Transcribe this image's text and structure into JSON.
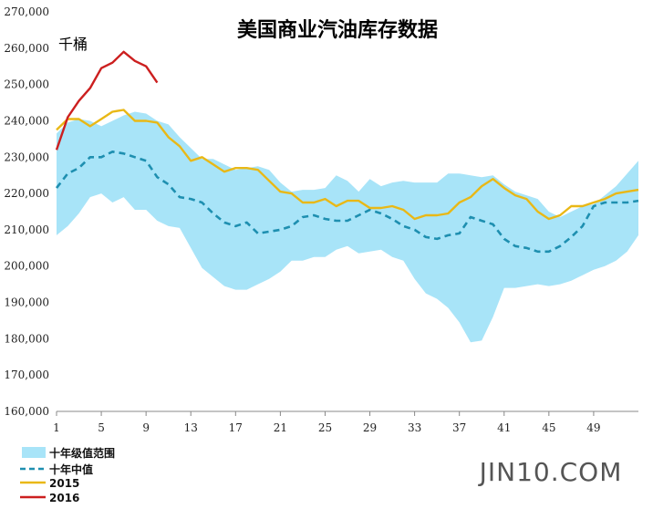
{
  "chart_data": {
    "type": "line",
    "title": "美国商业汽油库存数据",
    "unit_label": "千桶",
    "xlabel": "",
    "ylabel": "",
    "ylim": [
      160000,
      270000
    ],
    "yticks": [
      160000,
      170000,
      180000,
      190000,
      200000,
      210000,
      220000,
      230000,
      240000,
      250000,
      260000,
      270000
    ],
    "ytick_labels": [
      "160,000",
      "170,000",
      "180,000",
      "190,000",
      "200,000",
      "210,000",
      "220,000",
      "230,000",
      "240,000",
      "250,000",
      "260,000",
      "270,000"
    ],
    "xlim": [
      1,
      53
    ],
    "xticks": [
      1,
      5,
      9,
      13,
      17,
      21,
      25,
      29,
      33,
      37,
      41,
      45,
      49
    ],
    "xtick_labels": [
      "1",
      "5",
      "9",
      "13",
      "17",
      "21",
      "25",
      "29",
      "33",
      "37",
      "41",
      "45",
      "49"
    ],
    "grid": false,
    "legend_position": "bottom-left",
    "range_band": {
      "name": "十年级值范围",
      "color": "#a8e4f8",
      "x": [
        1,
        2,
        3,
        4,
        5,
        6,
        7,
        8,
        9,
        10,
        11,
        12,
        13,
        14,
        15,
        16,
        17,
        18,
        19,
        20,
        21,
        22,
        23,
        24,
        25,
        26,
        27,
        28,
        29,
        30,
        31,
        32,
        33,
        34,
        35,
        36,
        37,
        38,
        39,
        40,
        41,
        42,
        43,
        44,
        45,
        46,
        47,
        48,
        49,
        50,
        51,
        52,
        53
      ],
      "upper": [
        236500,
        239500,
        240500,
        240000,
        238500,
        240000,
        241500,
        242500,
        242000,
        240000,
        239000,
        235500,
        232500,
        229500,
        229500,
        228000,
        226500,
        227000,
        227500,
        226500,
        223000,
        220500,
        221000,
        221000,
        221500,
        225000,
        223500,
        220500,
        224000,
        222000,
        223000,
        223500,
        223000,
        223000,
        223000,
        225500,
        225500,
        225000,
        224500,
        225000,
        222500,
        220500,
        219500,
        218500,
        215000,
        213500,
        215000,
        216500,
        217000,
        219500,
        222000,
        225500,
        229000
      ],
      "lower": [
        208500,
        211000,
        214500,
        219000,
        220000,
        217500,
        219000,
        215500,
        215500,
        212500,
        211000,
        210500,
        205000,
        199500,
        197000,
        194500,
        193500,
        193500,
        195000,
        196500,
        198500,
        201500,
        201500,
        202500,
        202500,
        204500,
        205500,
        203500,
        204000,
        204500,
        202500,
        201500,
        196500,
        192500,
        191000,
        188500,
        184500,
        179000,
        179500,
        186000,
        194000,
        194000,
        194500,
        195000,
        194500,
        195000,
        196000,
        197500,
        199000,
        200000,
        201500,
        204000,
        208500
      ]
    },
    "series": [
      {
        "name": "十年中值",
        "color": "#1e8fb0",
        "dash": true,
        "x": [
          1,
          2,
          3,
          4,
          5,
          6,
          7,
          8,
          9,
          10,
          11,
          12,
          13,
          14,
          15,
          16,
          17,
          18,
          19,
          20,
          21,
          22,
          23,
          24,
          25,
          26,
          27,
          28,
          29,
          30,
          31,
          32,
          33,
          34,
          35,
          36,
          37,
          38,
          39,
          40,
          41,
          42,
          43,
          44,
          45,
          46,
          47,
          48,
          49,
          50,
          51,
          52,
          53
        ],
        "values": [
          221500,
          225500,
          227000,
          230000,
          230000,
          231500,
          231000,
          230000,
          229000,
          224500,
          222500,
          219000,
          218500,
          217500,
          214500,
          212000,
          211000,
          212000,
          209000,
          209500,
          210000,
          211000,
          213500,
          214000,
          213000,
          212500,
          212500,
          214000,
          215500,
          214500,
          213000,
          211000,
          210000,
          208000,
          207500,
          208500,
          209000,
          213500,
          212500,
          211500,
          207500,
          205500,
          205000,
          204000,
          204000,
          205500,
          208000,
          211000,
          216500,
          217500,
          217500,
          217500,
          218000
        ]
      },
      {
        "name": "2015",
        "color": "#e9b816",
        "dash": false,
        "x": [
          1,
          2,
          3,
          4,
          5,
          6,
          7,
          8,
          9,
          10,
          11,
          12,
          13,
          14,
          15,
          16,
          17,
          18,
          19,
          20,
          21,
          22,
          23,
          24,
          25,
          26,
          27,
          28,
          29,
          30,
          31,
          32,
          33,
          34,
          35,
          36,
          37,
          38,
          39,
          40,
          41,
          42,
          43,
          44,
          45,
          46,
          47,
          48,
          49,
          50,
          51,
          52,
          53
        ],
        "values": [
          237500,
          240500,
          240500,
          238500,
          240500,
          242500,
          243000,
          240000,
          240000,
          239500,
          235500,
          233000,
          229000,
          230000,
          228000,
          226000,
          227000,
          227000,
          226500,
          223500,
          220500,
          220000,
          217500,
          217500,
          218500,
          216500,
          218000,
          218000,
          216000,
          216000,
          216500,
          215500,
          213000,
          214000,
          214000,
          214500,
          217500,
          219000,
          222000,
          224000,
          221500,
          219500,
          218500,
          215000,
          213000,
          214000,
          216500,
          216500,
          217500,
          218500,
          220000,
          220500,
          221000
        ]
      },
      {
        "name": "2016",
        "color": "#cc1f1f",
        "dash": false,
        "x": [
          1,
          2,
          3,
          4,
          5,
          6,
          7,
          8,
          9,
          10
        ],
        "values": [
          232000,
          241000,
          245500,
          249000,
          254500,
          256000,
          259000,
          256500,
          255000,
          250500
        ]
      }
    ]
  },
  "legend": {
    "band_label": "十年级值范围",
    "median_label": "十年中值",
    "y2015_label": "2015",
    "y2016_label": "2016"
  },
  "watermark": "JIN10.COM"
}
